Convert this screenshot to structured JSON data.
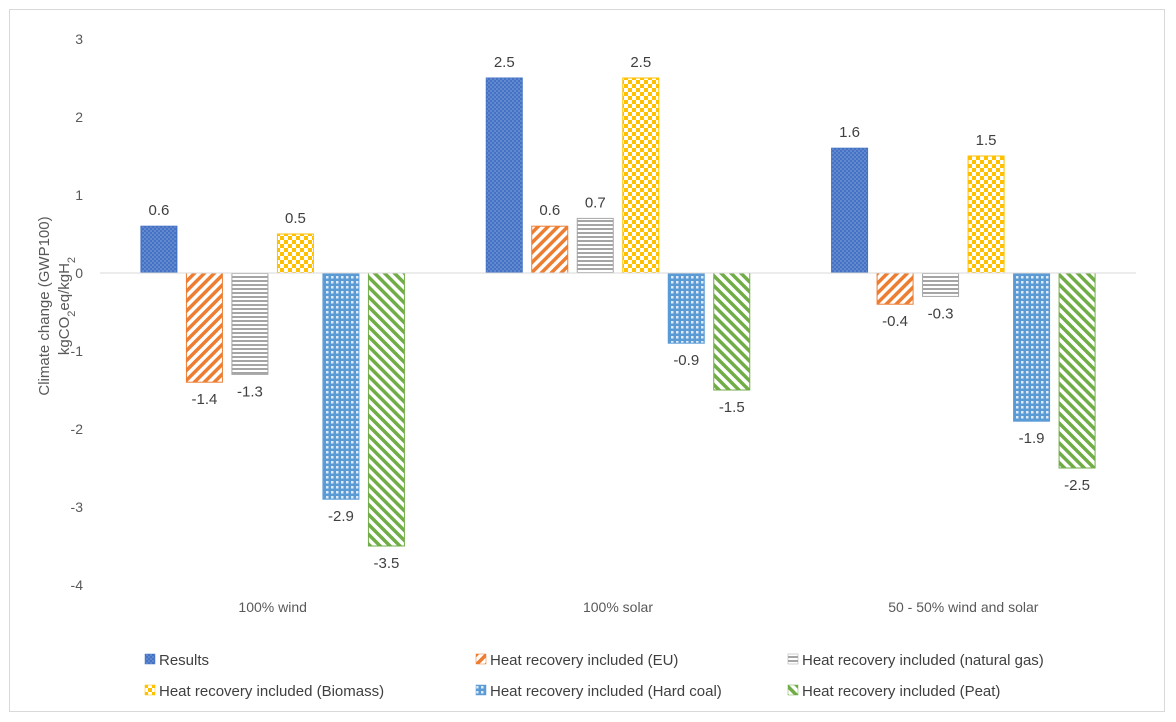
{
  "chart_data": {
    "type": "bar",
    "categories": [
      "100% wind",
      "100% solar",
      "50 - 50% wind and solar"
    ],
    "ylabel_line1": "Climate change (GWP100)",
    "ylabel_line2": "kgCO2eq/kgH2",
    "ylim": [
      -4,
      3
    ],
    "yticks": [
      3,
      2,
      1,
      0,
      -1,
      -2,
      -3,
      -4
    ],
    "grid": false,
    "legend_position": "bottom",
    "series": [
      {
        "name": "Results",
        "color": "#4472c4",
        "pattern": "dots",
        "values": [
          0.6,
          2.5,
          1.6
        ]
      },
      {
        "name": "Heat recovery included (EU)",
        "color": "#ed7d31",
        "pattern": "diagonal",
        "values": [
          -1.4,
          0.6,
          -0.4
        ]
      },
      {
        "name": "Heat recovery included (natural gas)",
        "color": "#a5a5a5",
        "pattern": "horizontal",
        "values": [
          -1.3,
          0.7,
          -0.3
        ]
      },
      {
        "name": "Heat recovery included (Biomass)",
        "color": "#ffc000",
        "pattern": "checker",
        "values": [
          0.5,
          2.5,
          1.5
        ]
      },
      {
        "name": "Heat recovery included (Hard coal)",
        "color": "#5b9bd5",
        "pattern": "grid",
        "values": [
          -2.9,
          -0.9,
          -1.9
        ]
      },
      {
        "name": "Heat recovery included (Peat)",
        "color": "#70ad47",
        "pattern": "diagonal-wide",
        "values": [
          -3.5,
          -1.5,
          -2.5
        ]
      }
    ]
  }
}
